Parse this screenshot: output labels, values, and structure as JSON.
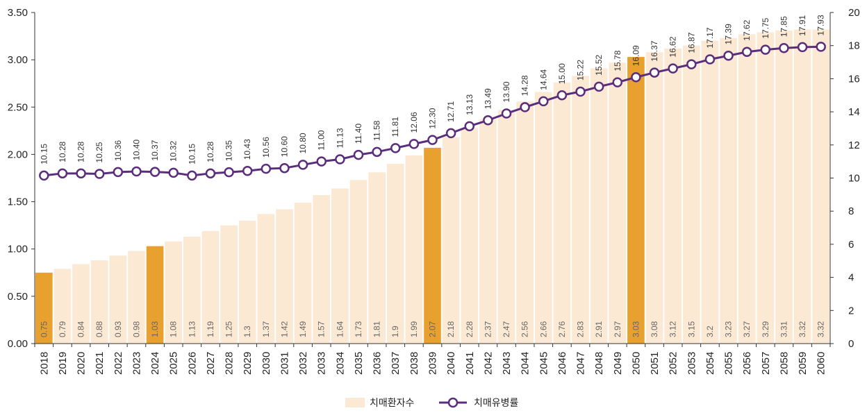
{
  "colors": {
    "bar": "#fbe9d3",
    "bar_highlight": "#e8a12f",
    "line": "#5b2d7d",
    "marker_fill": "#ffffff",
    "axis": "#333333",
    "bar_label": "#666666",
    "bar_label_highlight": "#ffffff"
  },
  "chart_data": {
    "type": "bar+line",
    "categories": [
      "2018",
      "2019",
      "2020",
      "2021",
      "2022",
      "2023",
      "2024",
      "2025",
      "2026",
      "2027",
      "2028",
      "2029",
      "2030",
      "2031",
      "2032",
      "2033",
      "2034",
      "2035",
      "2036",
      "2037",
      "2038",
      "2039",
      "2040",
      "2041",
      "2042",
      "2043",
      "2044",
      "2045",
      "2046",
      "2047",
      "2048",
      "2049",
      "2050",
      "2051",
      "2052",
      "2053",
      "2054",
      "2055",
      "2056",
      "2057",
      "2058",
      "2059",
      "2060"
    ],
    "series": [
      {
        "name": "치매환자수",
        "type": "bar",
        "axis": "left",
        "values": [
          0.75,
          0.79,
          0.84,
          0.88,
          0.93,
          0.98,
          1.03,
          1.08,
          1.13,
          1.19,
          1.25,
          1.3,
          1.37,
          1.42,
          1.49,
          1.57,
          1.64,
          1.73,
          1.81,
          1.9,
          1.99,
          2.07,
          2.18,
          2.28,
          2.37,
          2.47,
          2.56,
          2.66,
          2.76,
          2.83,
          2.91,
          2.97,
          3.03,
          3.08,
          3.12,
          3.15,
          3.2,
          3.23,
          3.27,
          3.29,
          3.31,
          3.32,
          3.32
        ],
        "labels": [
          "0.75",
          "0.79",
          "0.84",
          "0.88",
          "0.93",
          "0.98",
          "1.03",
          "1.08",
          "1.13",
          "1.19",
          "1.25",
          "1.3",
          "1.37",
          "1.42",
          "1.49",
          "1.57",
          "1.64",
          "1.73",
          "1.81",
          "1.9",
          "1.99",
          "2.07",
          "2.18",
          "2.28",
          "2.37",
          "2.47",
          "2.56",
          "2.66",
          "2.76",
          "2.83",
          "2.91",
          "2.97",
          "3.03",
          "3.08",
          "3.12",
          "3.15",
          "3.2",
          "3.23",
          "3.27",
          "3.29",
          "3.31",
          "3.32",
          "3.32"
        ],
        "highlighted": [
          "2018",
          "2024",
          "2039",
          "2050"
        ]
      },
      {
        "name": "치매유병률",
        "type": "line",
        "axis": "right",
        "values": [
          10.15,
          10.28,
          10.28,
          10.25,
          10.36,
          10.4,
          10.37,
          10.32,
          10.15,
          10.28,
          10.35,
          10.43,
          10.56,
          10.6,
          10.8,
          11.0,
          11.13,
          11.4,
          11.58,
          11.81,
          12.06,
          12.3,
          12.71,
          13.13,
          13.49,
          13.9,
          14.28,
          14.64,
          15.0,
          15.22,
          15.52,
          15.78,
          16.09,
          16.37,
          16.62,
          16.87,
          17.17,
          17.39,
          17.62,
          17.75,
          17.85,
          17.91,
          17.93
        ],
        "labels": [
          "10.15",
          "10.28",
          "10.28",
          "10.25",
          "10.36",
          "10.40",
          "10.37",
          "10.32",
          "10.15",
          "10.28",
          "10.35",
          "10.43",
          "10.56",
          "10.60",
          "10.80",
          "11.00",
          "11.13",
          "11.40",
          "11.58",
          "11.81",
          "12.06",
          "12.30",
          "12.71",
          "13.13",
          "13.49",
          "13.90",
          "14.28",
          "14.64",
          "15.00",
          "15.22",
          "15.52",
          "15.78",
          "16.09",
          "16.37",
          "16.62",
          "16.87",
          "17.17",
          "17.39",
          "17.62",
          "17.75",
          "17.85",
          "17.91",
          "17.93"
        ]
      }
    ],
    "left_axis": {
      "ylim": [
        0,
        3.5
      ],
      "ticks": [
        "0.00",
        "0.50",
        "1.00",
        "1.50",
        "2.00",
        "2.50",
        "3.00",
        "3.50"
      ]
    },
    "right_axis": {
      "ylim": [
        0,
        20
      ],
      "ticks": [
        "0",
        "2",
        "4",
        "6",
        "8",
        "10",
        "12",
        "14",
        "16",
        "18",
        "20"
      ]
    },
    "legend": {
      "position": "bottom-center",
      "items": [
        "치매환자수",
        "치매유병률"
      ]
    },
    "grid": false
  }
}
